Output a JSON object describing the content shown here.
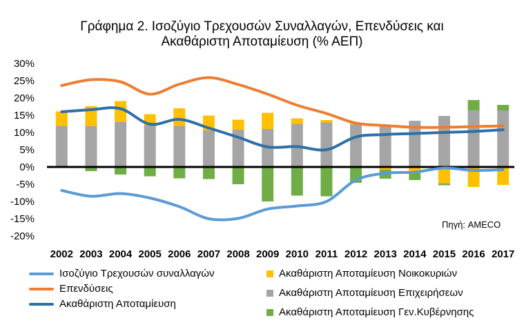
{
  "title_line1": "Γράφημα 2. Ισοζύγιο Τρεχουσών Συναλλαγών, Επενδύσεις και",
  "title_line2": "Ακαθάριστη Αποταμίευση (% ΑΕΠ)",
  "source": "Πηγή: AMECO",
  "chart_data": {
    "type": "bar",
    "categories": [
      "2002",
      "2003",
      "2004",
      "2005",
      "2006",
      "2007",
      "2008",
      "2009",
      "2010",
      "2011",
      "2012",
      "2013",
      "2014",
      "2015",
      "2016",
      "2017"
    ],
    "yticks": [
      "30%",
      "25%",
      "20%",
      "15%",
      "10%",
      "5%",
      "0%",
      "-5%",
      "-10%",
      "-15%",
      "-20%"
    ],
    "ylim": [
      -20,
      30
    ],
    "grid": false,
    "legend_position": "bottom",
    "bar_series": [
      {
        "name": "Ακαθάριστη Αποταμίευση Νοικοκυριών",
        "color": "#FFC000",
        "values": [
          4.2,
          5.8,
          6.1,
          3.2,
          5.1,
          4.3,
          2.9,
          4.7,
          1.6,
          0.7,
          0.4,
          -0.8,
          -1.8,
          -4.8,
          -5.8,
          -5.2
        ]
      },
      {
        "name": "Ακαθάριστη Αποταμίευση Επιχειρήσεων",
        "color": "#A5A5A5",
        "values": [
          11.9,
          11.8,
          13.0,
          12.1,
          11.9,
          10.6,
          10.8,
          11.0,
          12.5,
          12.9,
          12.3,
          12.2,
          13.4,
          14.8,
          16.4,
          16.4
        ]
      },
      {
        "name": "Ακαθάριστη Αποταμίευση Γεν.Κυβέρνησης",
        "color": "#70AD47",
        "values": [
          -0.3,
          -1.2,
          -2.2,
          -2.7,
          -3.3,
          -3.5,
          -5.0,
          -10.0,
          -8.3,
          -8.5,
          -4.6,
          -2.6,
          -2.0,
          -0.5,
          3.0,
          1.6
        ]
      }
    ],
    "line_series": [
      {
        "name": "Ισοζύγιο Τρεχουσών συναλλαγών",
        "color": "#5B9BD5",
        "values": [
          -6.8,
          -8.5,
          -7.7,
          -9.0,
          -11.5,
          -15.0,
          -14.9,
          -12.2,
          -11.3,
          -10.0,
          -3.8,
          -1.8,
          -1.5,
          -0.3,
          -1.0,
          -0.8
        ]
      },
      {
        "name": "Επενδύσεις",
        "color": "#ED7D31",
        "values": [
          23.6,
          25.3,
          24.7,
          21.1,
          24.0,
          25.9,
          23.9,
          21.1,
          17.9,
          15.5,
          12.7,
          12.0,
          11.5,
          11.5,
          11.7,
          11.9
        ]
      },
      {
        "name": "Ακαθάριστη Αποταμίευση",
        "color": "#2E6FA7",
        "values": [
          16.0,
          16.6,
          16.9,
          12.4,
          13.8,
          11.3,
          8.6,
          5.8,
          5.9,
          5.0,
          8.7,
          9.4,
          9.7,
          10.0,
          10.3,
          10.8
        ]
      }
    ]
  }
}
